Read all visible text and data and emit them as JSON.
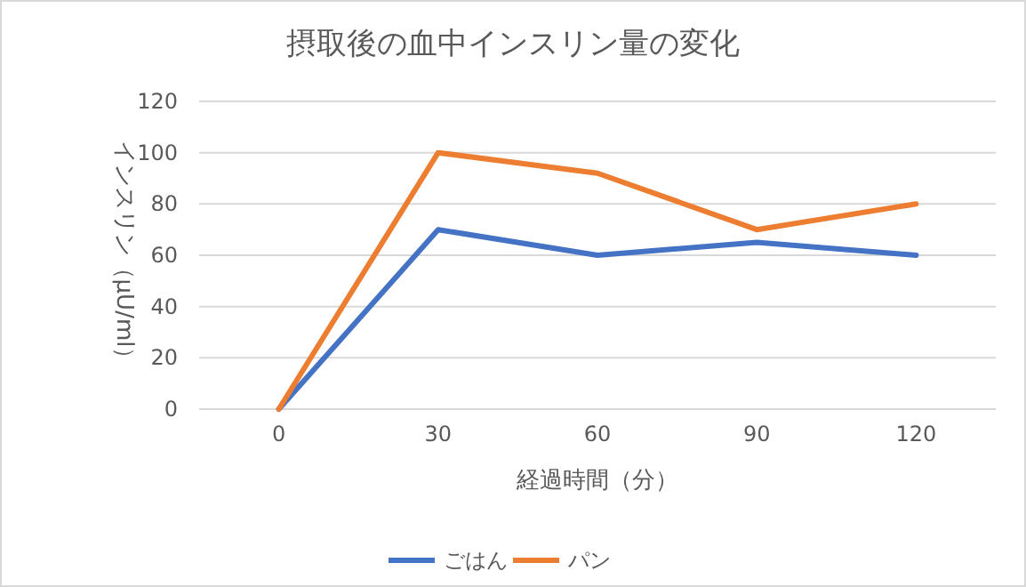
{
  "chart_data": {
    "type": "line",
    "title": "摂取後の血中インスリン量の変化",
    "xlabel": "経過時間（分）",
    "ylabel": "インスリン（μU/ml）",
    "categories": [
      "0",
      "30",
      "60",
      "90",
      "120"
    ],
    "series": [
      {
        "name": "ごはん",
        "color": "#4472c4",
        "values": [
          0,
          70,
          60,
          65,
          60
        ]
      },
      {
        "name": "パン",
        "color": "#ed7d31",
        "values": [
          0,
          100,
          92,
          70,
          80
        ]
      }
    ],
    "ylim": [
      0,
      120
    ],
    "yticks": [
      0,
      20,
      40,
      60,
      80,
      100,
      120
    ],
    "grid": "y",
    "legend": "bottom",
    "marker": "none",
    "line_style": "solid"
  }
}
